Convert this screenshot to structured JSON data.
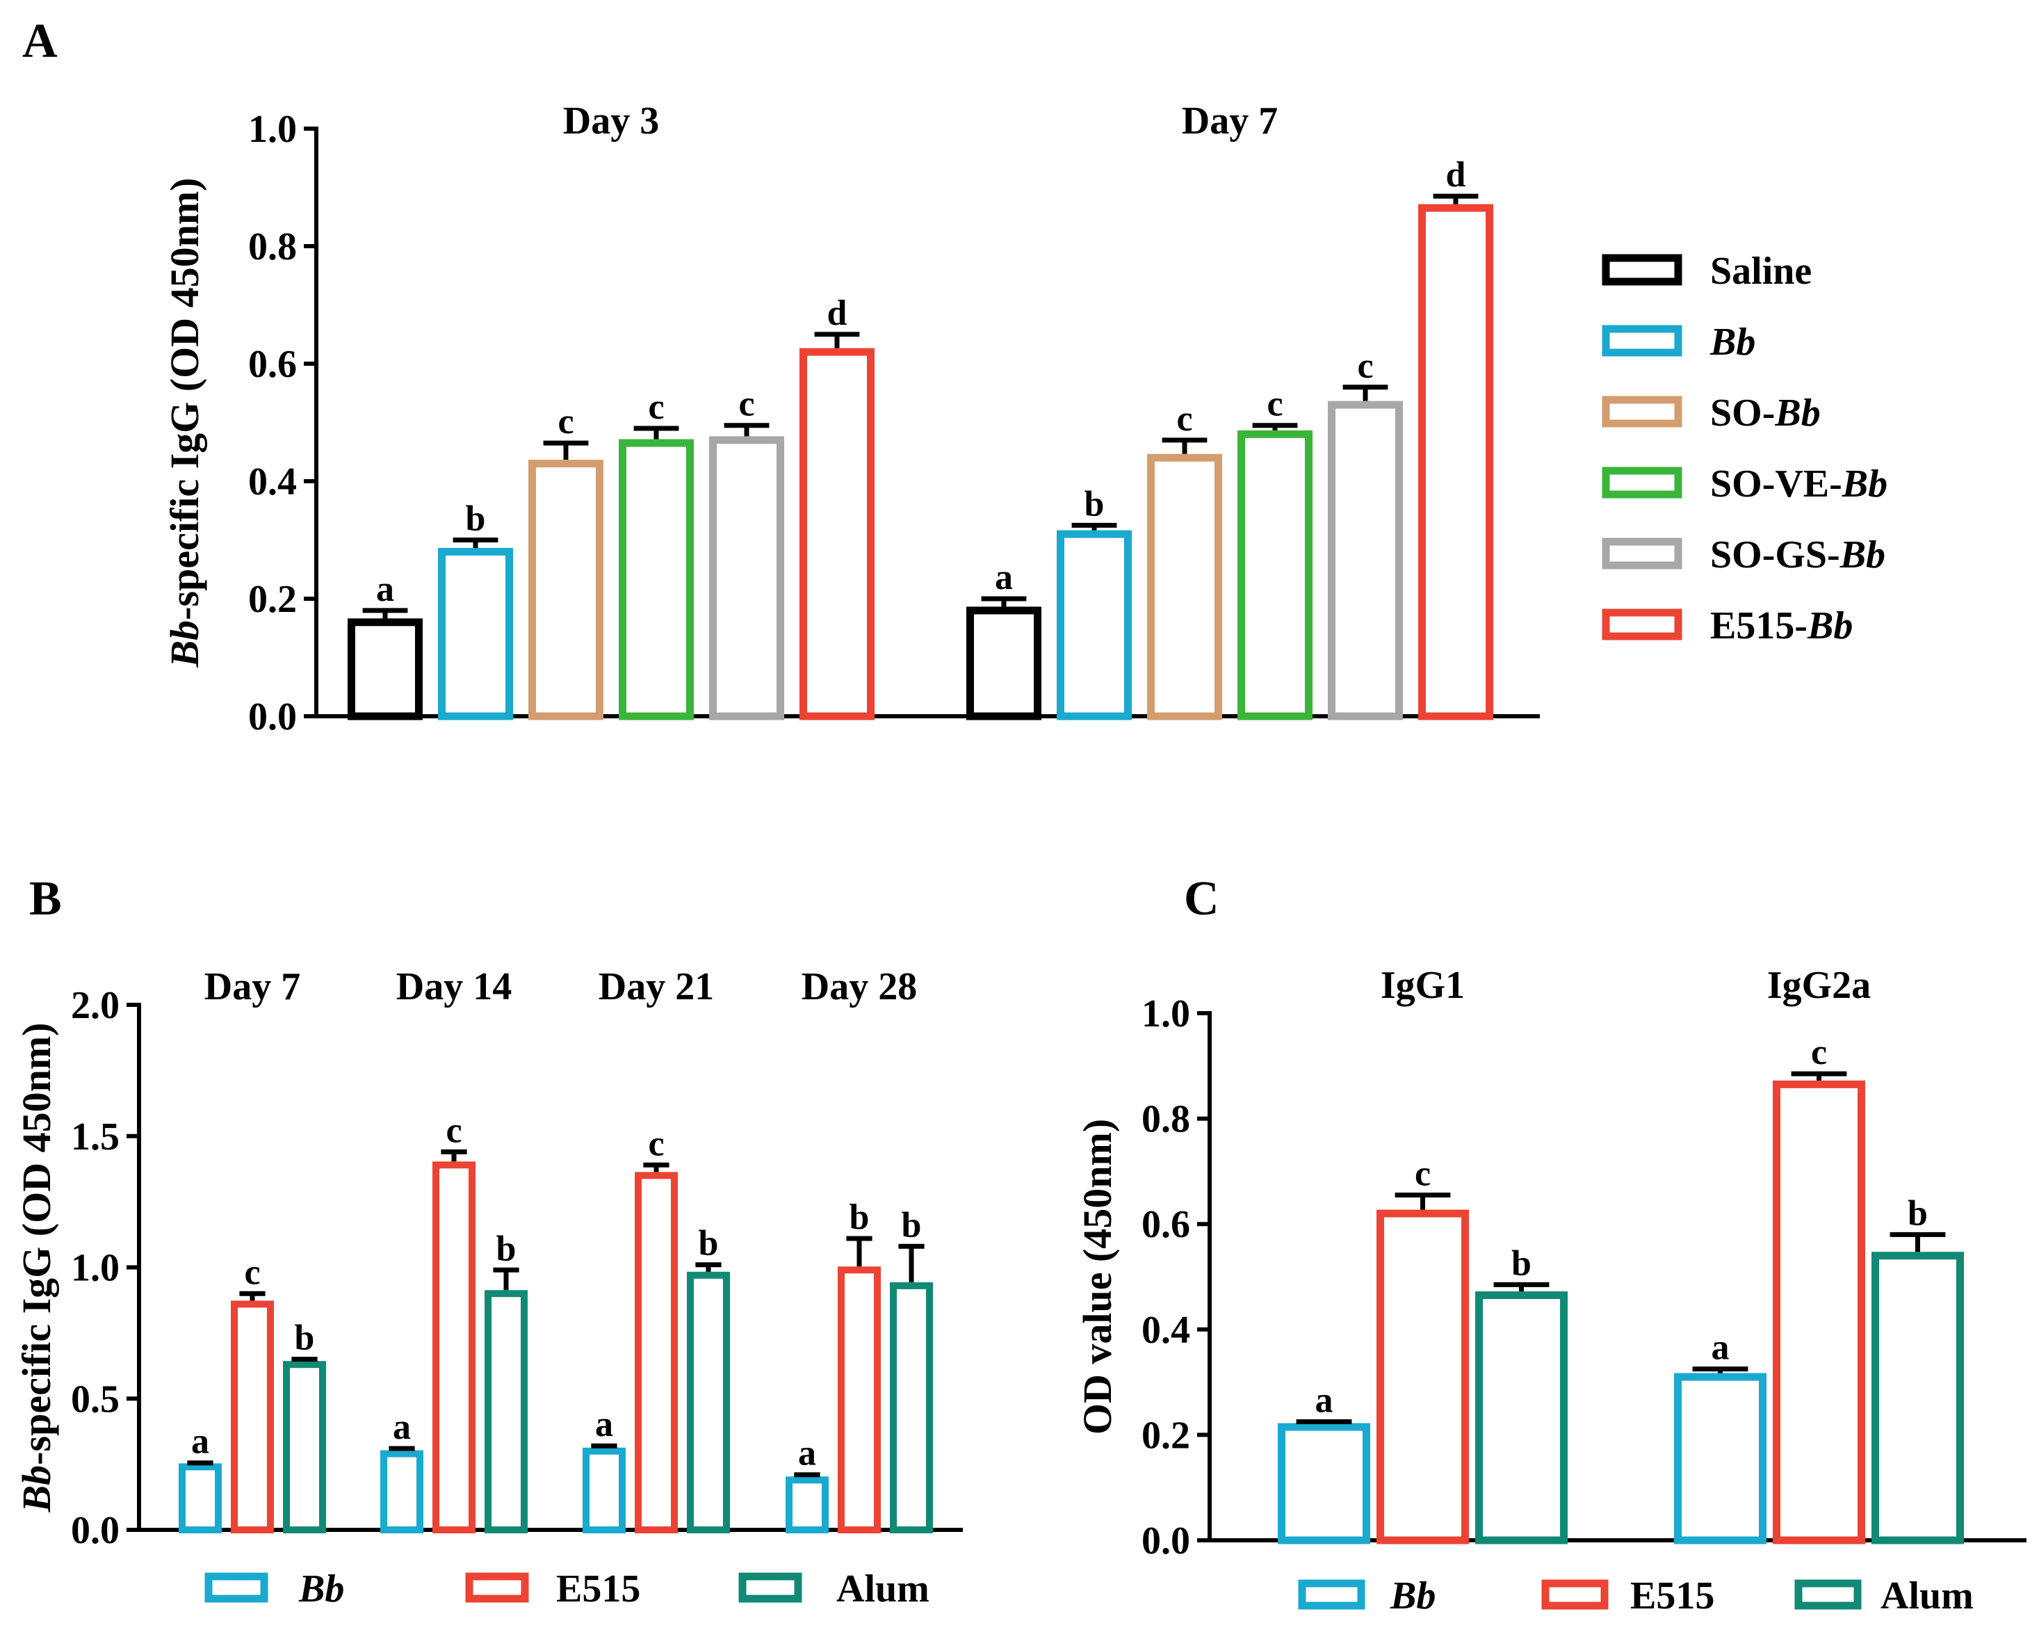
{
  "colors": {
    "Saline": "#000000",
    "Bb": "#1aa9cf",
    "SO-Bb": "#d39d6f",
    "SO-VE-Bb": "#3ab53a",
    "SO-GS-Bb": "#a7a7a7",
    "E515-Bb": "#ec4334",
    "E515": "#ec4334",
    "Alum": "#118a75"
  },
  "chart_data": [
    {
      "panel": "A",
      "type": "bar",
      "ylabel": {
        "italic": "Bb",
        "rest": "-specific IgG (OD 450nm)"
      },
      "ylim": [
        0,
        1.0
      ],
      "yticks": [
        "0.0",
        "0.2",
        "0.4",
        "0.6",
        "0.8",
        "1.0"
      ],
      "categories": [
        "Day 3",
        "Day 7"
      ],
      "series": [
        {
          "name": "Saline",
          "parts": [
            {
              "t": "Saline",
              "i": false
            }
          ],
          "values": [
            0.16,
            0.18
          ],
          "errors": [
            0.02,
            0.02
          ],
          "letters": [
            "a",
            "a"
          ]
        },
        {
          "name": "Bb",
          "parts": [
            {
              "t": "Bb",
              "i": true
            }
          ],
          "values": [
            0.28,
            0.31
          ],
          "errors": [
            0.02,
            0.015
          ],
          "letters": [
            "b",
            "b"
          ]
        },
        {
          "name": "SO-Bb",
          "parts": [
            {
              "t": "SO-",
              "i": false
            },
            {
              "t": "Bb",
              "i": true
            }
          ],
          "values": [
            0.43,
            0.44
          ],
          "errors": [
            0.035,
            0.03
          ],
          "letters": [
            "c",
            "c"
          ]
        },
        {
          "name": "SO-VE-Bb",
          "parts": [
            {
              "t": "SO-VE-",
              "i": false
            },
            {
              "t": "Bb",
              "i": true
            }
          ],
          "values": [
            0.465,
            0.48
          ],
          "errors": [
            0.025,
            0.015
          ],
          "letters": [
            "c",
            "c"
          ]
        },
        {
          "name": "SO-GS-Bb",
          "parts": [
            {
              "t": "SO-GS-",
              "i": false
            },
            {
              "t": "Bb",
              "i": true
            }
          ],
          "values": [
            0.47,
            0.53
          ],
          "errors": [
            0.025,
            0.03
          ],
          "letters": [
            "c",
            "c"
          ]
        },
        {
          "name": "E515-Bb",
          "parts": [
            {
              "t": "E515-",
              "i": false
            },
            {
              "t": "Bb",
              "i": true
            }
          ],
          "values": [
            0.62,
            0.865
          ],
          "errors": [
            0.03,
            0.02
          ],
          "letters": [
            "d",
            "d"
          ]
        }
      ],
      "legend": "right"
    },
    {
      "panel": "B",
      "type": "bar",
      "ylabel": {
        "italic": "Bb",
        "rest": "-specific IgG (OD 450nm)"
      },
      "ylim": [
        0,
        2.0
      ],
      "yticks": [
        "0.0",
        "0.5",
        "1.0",
        "1.5",
        "2.0"
      ],
      "categories": [
        "Day 7",
        "Day 14",
        "Day 21",
        "Day 28"
      ],
      "series": [
        {
          "name": "Bb",
          "parts": [
            {
              "t": "Bb",
              "i": true
            }
          ],
          "values": [
            0.24,
            0.29,
            0.3,
            0.19
          ],
          "errors": [
            0.015,
            0.02,
            0.02,
            0.02
          ],
          "letters": [
            "a",
            "a",
            "a",
            "a"
          ]
        },
        {
          "name": "E515",
          "parts": [
            {
              "t": "E515",
              "i": false
            }
          ],
          "values": [
            0.86,
            1.39,
            1.35,
            0.99
          ],
          "errors": [
            0.04,
            0.05,
            0.04,
            0.12
          ],
          "letters": [
            "c",
            "c",
            "c",
            "b"
          ]
        },
        {
          "name": "Alum",
          "parts": [
            {
              "t": "Alum",
              "i": false
            }
          ],
          "values": [
            0.63,
            0.9,
            0.97,
            0.93
          ],
          "errors": [
            0.02,
            0.09,
            0.04,
            0.15
          ],
          "letters": [
            "b",
            "b",
            "b",
            "b"
          ]
        }
      ],
      "legend": "bottom"
    },
    {
      "panel": "C",
      "type": "bar",
      "ylabel": {
        "italic": "",
        "rest": "OD value (450nm)"
      },
      "ylim": [
        0,
        1.0
      ],
      "yticks": [
        "0.0",
        "0.2",
        "0.4",
        "0.6",
        "0.8",
        "1.0"
      ],
      "categories": [
        "IgG1",
        "IgG2a"
      ],
      "series": [
        {
          "name": "Bb",
          "parts": [
            {
              "t": "Bb",
              "i": true
            }
          ],
          "values": [
            0.215,
            0.31
          ],
          "errors": [
            0.01,
            0.015
          ],
          "letters": [
            "a",
            "a"
          ]
        },
        {
          "name": "E515",
          "parts": [
            {
              "t": "E515",
              "i": false
            }
          ],
          "values": [
            0.62,
            0.865
          ],
          "errors": [
            0.035,
            0.02
          ],
          "letters": [
            "c",
            "c"
          ]
        },
        {
          "name": "Alum",
          "parts": [
            {
              "t": "Alum",
              "i": false
            }
          ],
          "values": [
            0.465,
            0.54
          ],
          "errors": [
            0.02,
            0.04
          ],
          "letters": [
            "b",
            "b"
          ]
        }
      ],
      "legend": "bottom"
    }
  ]
}
